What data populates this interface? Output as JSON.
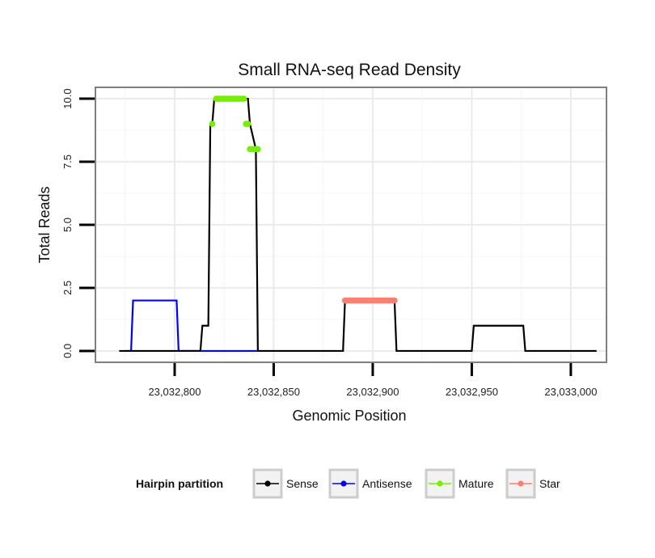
{
  "chart_data": {
    "type": "line",
    "title": "Small RNA-seq Read Density",
    "xlabel": "Genomic Position",
    "ylabel": "Total Reads",
    "xlim": [
      23032760,
      23033018
    ],
    "ylim": [
      -0.45,
      10.45
    ],
    "x_ticks": [
      23032800,
      23032850,
      23032900,
      23032950,
      23033000
    ],
    "x_tick_labels": [
      "23,032,800",
      "23,032,850",
      "23,032,900",
      "23,032,950",
      "23,033,000"
    ],
    "y_ticks": [
      0,
      2.5,
      5,
      7.5,
      10
    ],
    "y_tick_labels": [
      "0.0",
      "2.5",
      "5.0",
      "7.5",
      "10.0"
    ],
    "grid": true,
    "legend": {
      "title": "Hairpin partition",
      "position": "bottom",
      "entries": [
        {
          "name": "Sense",
          "color": "#000000"
        },
        {
          "name": "Antisense",
          "color": "#0000ff"
        },
        {
          "name": "Mature",
          "color": "#76ee00"
        },
        {
          "name": "Star",
          "color": "#fa8072"
        }
      ]
    },
    "series": [
      {
        "name": "Sense",
        "color": "#000000",
        "x": [
          23032772,
          23032784,
          23032785,
          23032797,
          23032798,
          23032813,
          23032814,
          23032817,
          23032818,
          23032819,
          23032820,
          23032837,
          23032838,
          23032841,
          23032842,
          23032885,
          23032886,
          23032911,
          23032912,
          23032950,
          23032951,
          23032976,
          23032977,
          23033013
        ],
        "y": [
          0,
          0,
          0,
          0,
          0,
          0,
          1,
          1,
          9,
          9,
          10,
          10,
          9,
          8,
          0,
          0,
          2,
          2,
          0,
          0,
          1,
          1,
          0,
          0
        ],
        "markers": false
      },
      {
        "name": "Antisense",
        "color": "#0000ff",
        "x": [
          23032776,
          23032778,
          23032779,
          23032801,
          23032802,
          23032843
        ],
        "y": [
          0,
          0,
          2,
          2,
          0,
          0
        ],
        "markers": false
      },
      {
        "name": "Mature",
        "color": "#76ee00",
        "x": [
          23032819,
          23032821,
          23032822,
          23032823,
          23032824,
          23032825,
          23032826,
          23032827,
          23032828,
          23032829,
          23032830,
          23032831,
          23032832,
          23032833,
          23032834,
          23032835,
          23032836,
          23032837,
          23032838,
          23032839,
          23032840,
          23032841,
          23032842
        ],
        "y": [
          9,
          10,
          10,
          10,
          10,
          10,
          10,
          10,
          10,
          10,
          10,
          10,
          10,
          10,
          10,
          10,
          9,
          9,
          8,
          8,
          8,
          8,
          8
        ],
        "markers": true
      },
      {
        "name": "Star",
        "color": "#fa8072",
        "x": [
          23032886,
          23032887,
          23032888,
          23032889,
          23032890,
          23032891,
          23032892,
          23032893,
          23032894,
          23032895,
          23032896,
          23032897,
          23032898,
          23032899,
          23032900,
          23032901,
          23032902,
          23032903,
          23032904,
          23032905,
          23032906,
          23032907,
          23032908,
          23032909,
          23032910,
          23032911
        ],
        "y": [
          2,
          2,
          2,
          2,
          2,
          2,
          2,
          2,
          2,
          2,
          2,
          2,
          2,
          2,
          2,
          2,
          2,
          2,
          2,
          2,
          2,
          2,
          2,
          2,
          2,
          2
        ],
        "markers": true
      }
    ]
  }
}
